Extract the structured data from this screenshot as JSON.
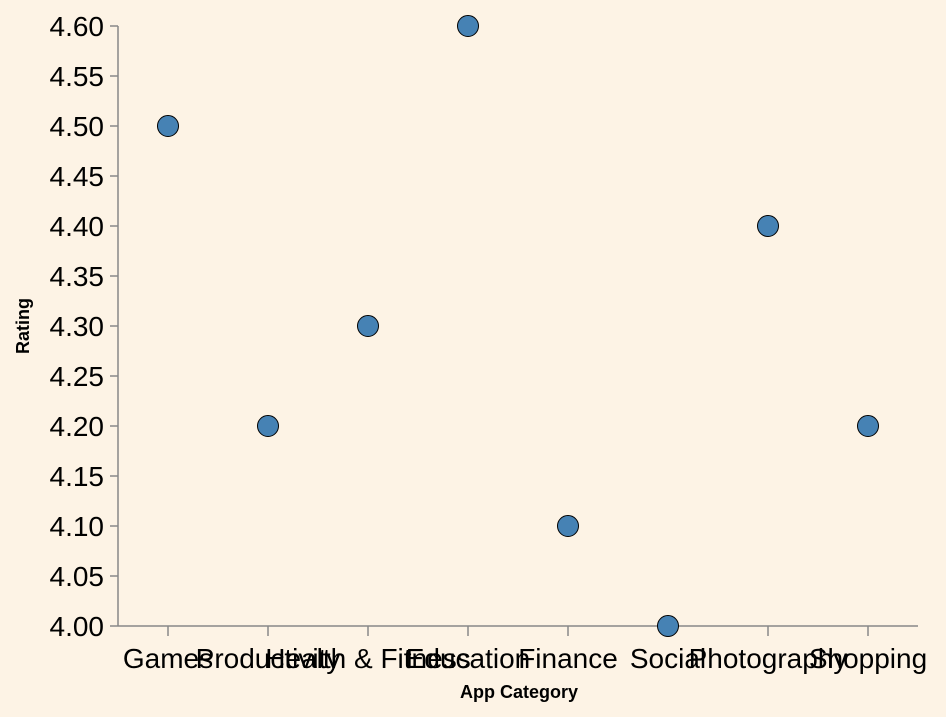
{
  "chart_data": {
    "type": "scatter",
    "categories": [
      "Games",
      "Productivity",
      "Health & Fitness",
      "Education",
      "Finance",
      "Social",
      "Photography",
      "Shopping"
    ],
    "values": [
      4.5,
      4.2,
      4.3,
      4.6,
      4.1,
      4.0,
      4.4,
      4.2
    ],
    "xlabel": "App Category",
    "ylabel": "Rating",
    "ylim": [
      4.0,
      4.6
    ],
    "yticks": [
      "4.00",
      "4.05",
      "4.10",
      "4.15",
      "4.20",
      "4.25",
      "4.30",
      "4.35",
      "4.40",
      "4.45",
      "4.50",
      "4.55",
      "4.60"
    ],
    "grid": false,
    "colors": {
      "background": "#fdf3e5",
      "point_fill": "#4682b4",
      "point_stroke": "#000000",
      "axis": "#888888"
    }
  }
}
